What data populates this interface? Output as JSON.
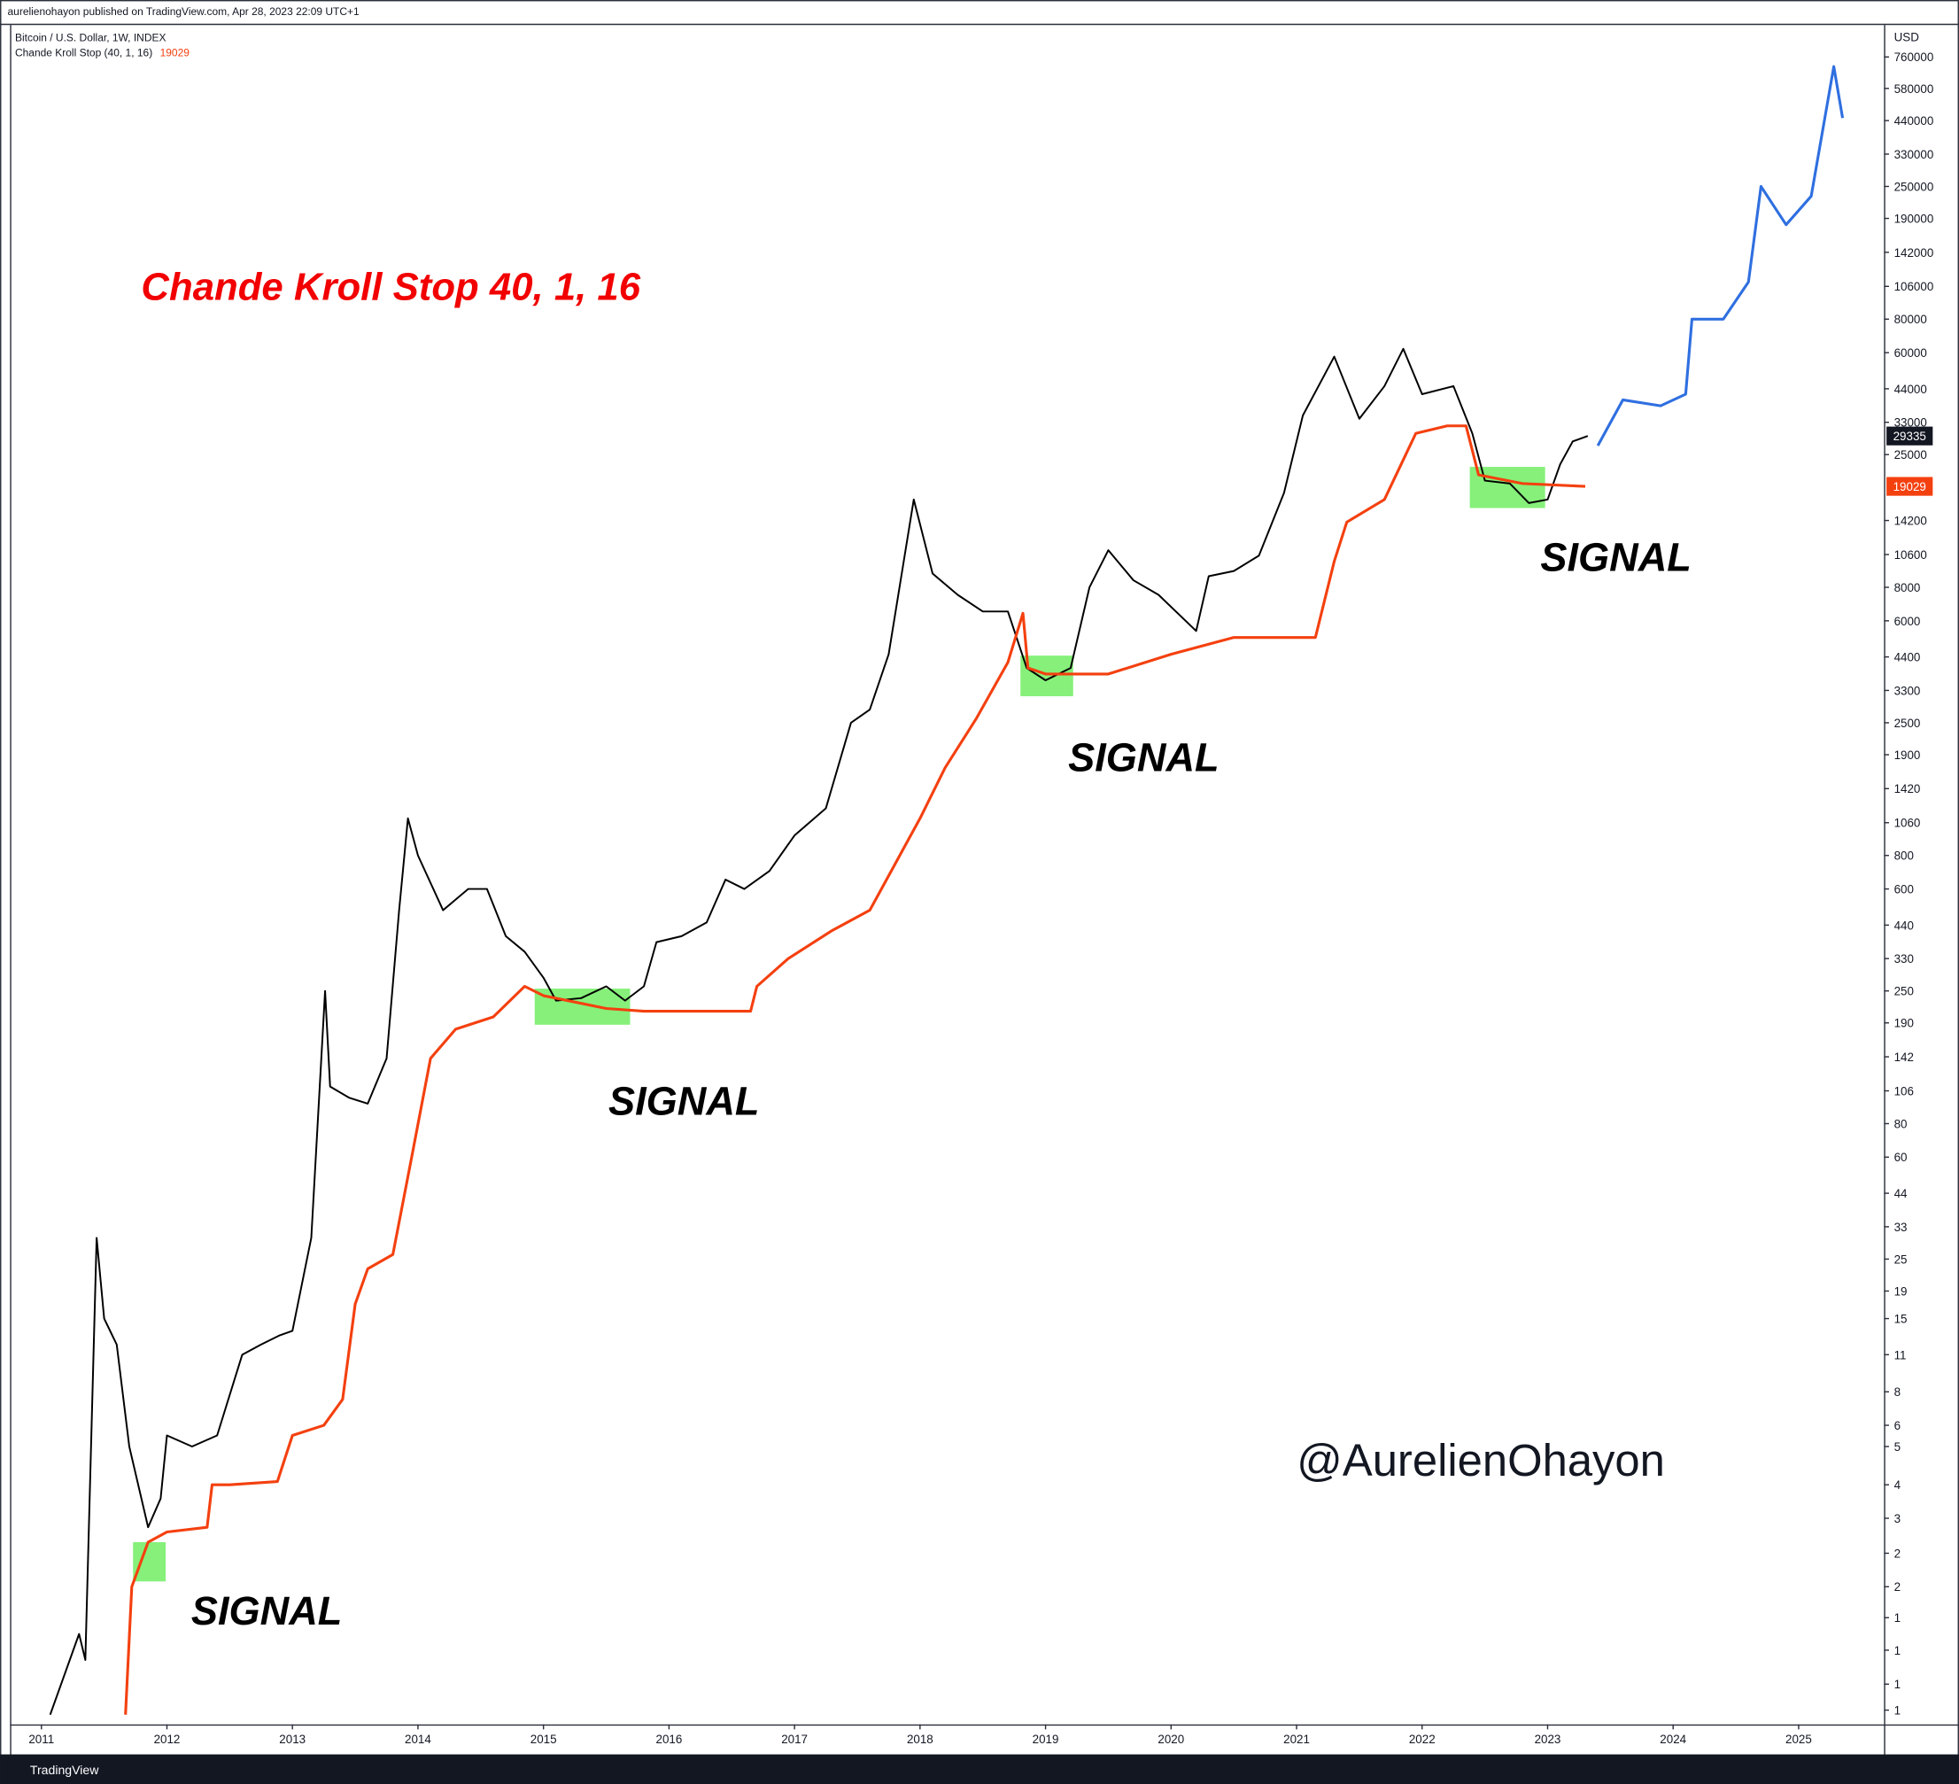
{
  "header": {
    "published": "aurelienohayon published on TradingView.com, Apr 28, 2023 22:09 UTC+1"
  },
  "footer": {
    "brand": "TradingView"
  },
  "chart_data": {
    "type": "line",
    "title": "Chande Kroll Stop 40, 1, 16",
    "currency": "USD",
    "log_scale": true,
    "grid": false,
    "xlim": [
      2010.75,
      2025.68
    ],
    "xticks": [
      2011,
      2012,
      2013,
      2014,
      2015,
      2016,
      2017,
      2018,
      2019,
      2020,
      2021,
      2022,
      2023,
      2024,
      2025
    ],
    "ylim": [
      0.46,
      1000000
    ],
    "yticks": [
      760000,
      580000,
      440000,
      330000,
      250000,
      190000,
      142000,
      106000,
      80000,
      60000,
      44000,
      33000,
      25000,
      14200,
      10600,
      8000,
      6000,
      4400,
      3300,
      2500,
      1900,
      1420,
      1060,
      800,
      600,
      440,
      330,
      250,
      190,
      142,
      106,
      80,
      60,
      44,
      33,
      25,
      19,
      15,
      11,
      8,
      6,
      5,
      {
        "value": 3.6,
        "label": "4"
      },
      {
        "value": 2.7,
        "label": "3"
      },
      {
        "value": 2.0,
        "label": "2"
      },
      {
        "value": 1.5,
        "label": "2"
      },
      {
        "value": 1.15,
        "label": "1"
      },
      {
        "value": 0.87,
        "label": "1"
      },
      {
        "value": 0.65,
        "label": "1"
      },
      {
        "value": 0.52,
        "label": "1"
      }
    ],
    "series": [
      {
        "name": "Bitcoin / U.S. Dollar, 1W, INDEX",
        "color": "#000000",
        "x": [
          2011.07,
          2011.3,
          2011.35,
          2011.4,
          2011.44,
          2011.5,
          2011.6,
          2011.7,
          2011.85,
          2011.95,
          2012.0,
          2012.2,
          2012.4,
          2012.6,
          2012.75,
          2012.9,
          2013.0,
          2013.15,
          2013.26,
          2013.3,
          2013.45,
          2013.6,
          2013.75,
          2013.85,
          2013.92,
          2014.0,
          2014.2,
          2014.4,
          2014.55,
          2014.7,
          2014.85,
          2015.0,
          2015.1,
          2015.3,
          2015.5,
          2015.65,
          2015.8,
          2015.9,
          2016.1,
          2016.3,
          2016.45,
          2016.6,
          2016.8,
          2017.0,
          2017.25,
          2017.45,
          2017.6,
          2017.75,
          2017.95,
          2018.1,
          2018.3,
          2018.5,
          2018.7,
          2018.85,
          2019.0,
          2019.2,
          2019.35,
          2019.5,
          2019.7,
          2019.9,
          2020.2,
          2020.3,
          2020.5,
          2020.7,
          2020.9,
          2021.05,
          2021.3,
          2021.5,
          2021.7,
          2021.85,
          2022.0,
          2022.25,
          2022.4,
          2022.5,
          2022.7,
          2022.85,
          2023.0,
          2023.1,
          2023.2,
          2023.32
        ],
        "values": [
          0.5,
          1.0,
          0.8,
          6,
          30,
          15,
          12,
          5,
          2.5,
          3.2,
          5.5,
          5,
          5.5,
          11,
          12,
          13,
          13.5,
          30,
          250,
          110,
          100,
          95,
          140,
          500,
          1100,
          800,
          500,
          600,
          600,
          400,
          350,
          280,
          230,
          235,
          260,
          230,
          260,
          380,
          400,
          450,
          650,
          600,
          700,
          950,
          1200,
          2500,
          2800,
          4500,
          17000,
          9000,
          7500,
          6500,
          6500,
          4000,
          3600,
          4000,
          8000,
          11000,
          8500,
          7500,
          5500,
          8800,
          9200,
          10500,
          18000,
          35000,
          58000,
          34000,
          45000,
          62000,
          42000,
          45000,
          30000,
          20000,
          19500,
          16500,
          17000,
          23000,
          28000,
          29335
        ]
      },
      {
        "name": "Chande Kroll Stop (40, 1, 16)",
        "color": "#f4400f",
        "x": [
          2011.67,
          2011.72,
          2011.85,
          2012.0,
          2012.32,
          2012.36,
          2012.5,
          2012.88,
          2013.0,
          2013.25,
          2013.4,
          2013.5,
          2013.6,
          2013.8,
          2013.95,
          2014.1,
          2014.3,
          2014.6,
          2014.85,
          2015.0,
          2015.5,
          2015.8,
          2016.65,
          2016.7,
          2016.95,
          2017.3,
          2017.6,
          2018.0,
          2018.2,
          2018.45,
          2018.7,
          2018.82,
          2018.86,
          2019.0,
          2019.5,
          2020.0,
          2020.5,
          2021.15,
          2021.3,
          2021.4,
          2021.7,
          2021.95,
          2022.2,
          2022.35,
          2022.45,
          2022.8,
          2023.3
        ],
        "values": [
          0.5,
          1.5,
          2.2,
          2.4,
          2.5,
          3.6,
          3.6,
          3.7,
          5.5,
          6,
          7.5,
          17,
          23,
          26,
          60,
          140,
          180,
          200,
          260,
          240,
          215,
          210,
          210,
          260,
          330,
          420,
          500,
          1100,
          1700,
          2600,
          4200,
          6400,
          4000,
          3800,
          3800,
          4500,
          5200,
          5200,
          10000,
          14000,
          17000,
          30000,
          32000,
          32000,
          21000,
          19500,
          19029
        ]
      },
      {
        "color": "#2f6fe0",
        "x": [
          2023.4,
          2023.6,
          2023.9,
          2024.1,
          2024.15,
          2024.4,
          2024.6,
          2024.7,
          2024.9,
          2025.1,
          2025.28,
          2025.35
        ],
        "values": [
          27000,
          40000,
          38000,
          42000,
          80000,
          80000,
          110000,
          250000,
          180000,
          230000,
          700000,
          450000
        ]
      }
    ],
    "highlights": [
      {
        "x": [
          2011.73,
          2011.99
        ],
        "y": [
          1.57,
          2.2
        ]
      },
      {
        "x": [
          2014.93,
          2015.69
        ],
        "y": [
          187,
          255
        ]
      },
      {
        "x": [
          2018.8,
          2019.22
        ],
        "y": [
          3140,
          4450
        ]
      },
      {
        "x": [
          2022.38,
          2022.98
        ],
        "y": [
          15800,
          22500
        ]
      }
    ],
    "highlight_color": "#86f07a",
    "annotations": [
      "SIGNAL",
      "SIGNAL",
      "SIGNAL",
      "SIGNAL"
    ],
    "watermark": "@AurelienOhayon"
  }
}
